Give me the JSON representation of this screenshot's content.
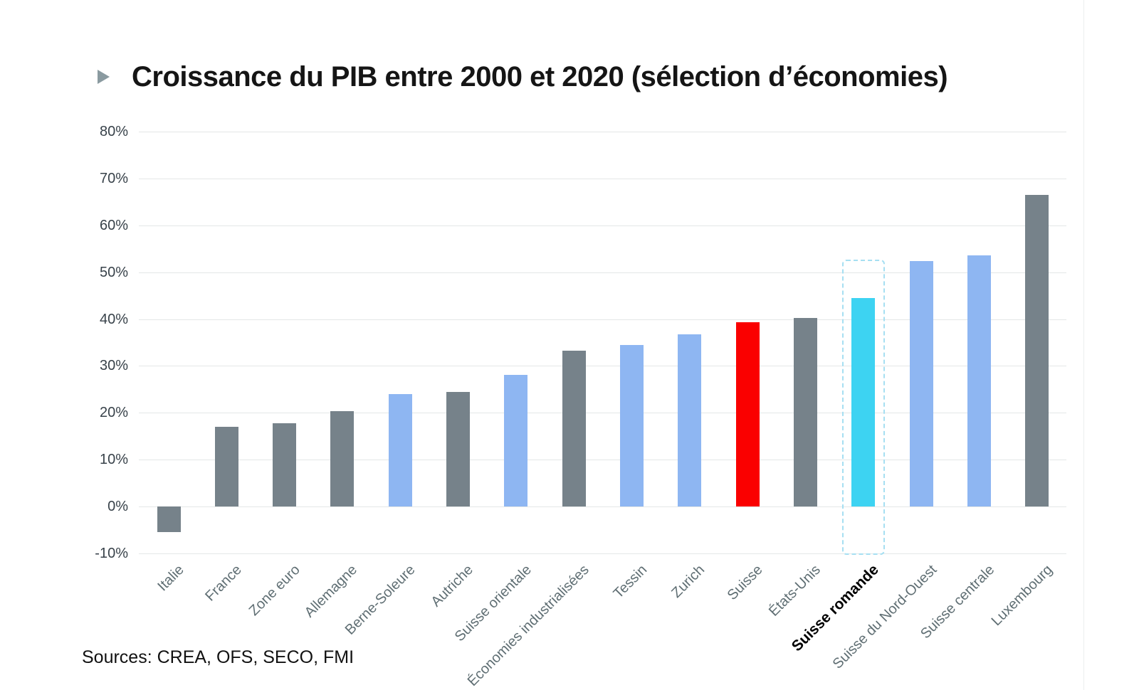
{
  "title": {
    "bullet_icon": "triangle-right",
    "text": "Croissance du PIB entre 2000 et 2020 (sélection d’économies)"
  },
  "source_note": "Sources: CREA, OFS, SECO, FMI",
  "colors": {
    "title_bullet": "#8A9AA0",
    "gridline": "#E4E7E7",
    "y_tick_label": "#38424A",
    "x_tick_label": "#5F6E73",
    "highlight_label": "#000000",
    "highlight_outline": "#A6DFF2",
    "right_divider": "#ECEFEF"
  },
  "chart_data": {
    "type": "bar",
    "title": "Croissance du PIB entre 2000 et 2020 (sélection d’économies)",
    "xlabel": "",
    "ylabel": "",
    "ylim": [
      -10,
      80
    ],
    "grid": "horizontal",
    "legend": "none",
    "y_ticks": [
      {
        "label": "80%",
        "value": 80
      },
      {
        "label": "70%",
        "value": 70
      },
      {
        "label": "60%",
        "value": 60
      },
      {
        "label": "50%",
        "value": 50
      },
      {
        "label": "40%",
        "value": 40
      },
      {
        "label": "30%",
        "value": 30
      },
      {
        "label": "20%",
        "value": 20
      },
      {
        "label": "10%",
        "value": 10
      },
      {
        "label": "0%",
        "value": 0
      },
      {
        "label": "-10%",
        "value": -10
      }
    ],
    "categories": [
      "Italie",
      "France",
      "Zone euro",
      "Allemagne",
      "Berne-Soleure",
      "Autriche",
      "Suisse orientale",
      "Économies industrialisées",
      "Tessin",
      "Zurich",
      "Suisse",
      "États-Unis",
      "Suisse romande",
      "Suisse du Nord-Ouest",
      "Suisse centrale",
      "Luxembourg"
    ],
    "values": [
      -5.5,
      17.0,
      17.8,
      20.3,
      24.0,
      24.4,
      28.1,
      33.3,
      34.4,
      36.8,
      39.3,
      40.3,
      44.5,
      52.4,
      53.6,
      66.5
    ],
    "roles": [
      "country",
      "country",
      "country",
      "country",
      "swiss_region",
      "country",
      "swiss_region",
      "country",
      "swiss_region",
      "swiss_region",
      "switzerland",
      "country",
      "suisse_romande",
      "swiss_region",
      "swiss_region",
      "country"
    ],
    "palette": {
      "country": "#76828A",
      "swiss_region": "#8EB6F2",
      "switzerland": "#FA0000",
      "suisse_romande": "#3DD3F2"
    },
    "highlight": {
      "category": "Suisse romande",
      "style": "dashed-outline",
      "outline_color": "#A6DFF2",
      "label_bold": true
    }
  }
}
